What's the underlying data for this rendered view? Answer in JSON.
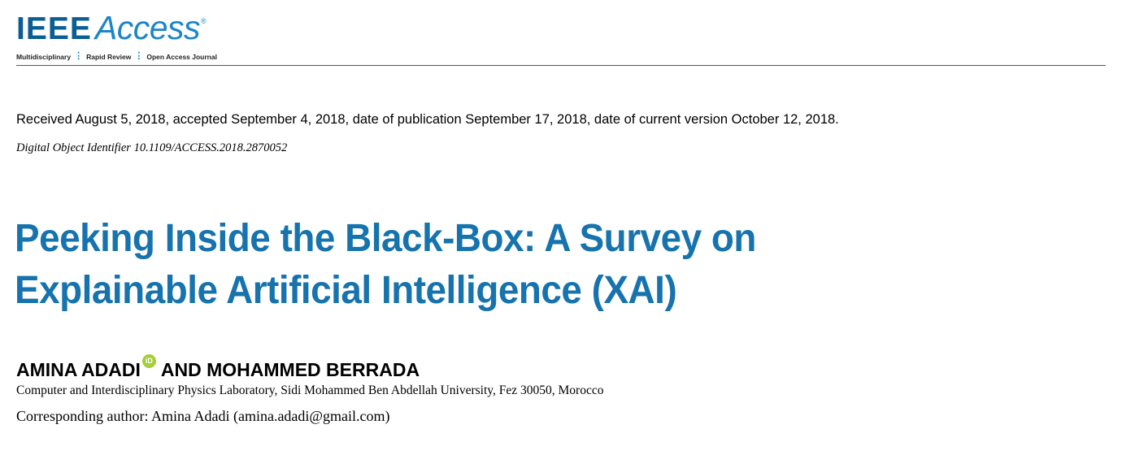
{
  "journal": {
    "logo_ieee": "IEEE",
    "logo_access": "Access",
    "logo_reg": "®",
    "tagline": [
      "Multidisciplinary",
      "Rapid Review",
      "Open Access Journal"
    ],
    "brand_color": "#0b5e94",
    "accent_color": "#1a86c7"
  },
  "dates": {
    "received": "Received August 5, 2018, accepted September 4, 2018, date of publication September 17, 2018, date of current version October 12, 2018."
  },
  "doi": "Digital Object Identifier 10.1109/ACCESS.2018.2870052",
  "title": {
    "line1": "Peeking Inside the Black-Box: A Survey on",
    "line2": "Explainable Artificial Intelligence (XAI)",
    "color": "#1673ad"
  },
  "authors": {
    "first": "AMINA ADADI",
    "orcid_icon": "iD",
    "rest": "AND MOHAMMED BERRADA"
  },
  "affiliation": "Computer and Interdisciplinary Physics Laboratory, Sidi Mohammed Ben Abdellah University, Fez 30050, Morocco",
  "corresponding": "Corresponding author: Amina Adadi (amina.adadi@gmail.com)"
}
